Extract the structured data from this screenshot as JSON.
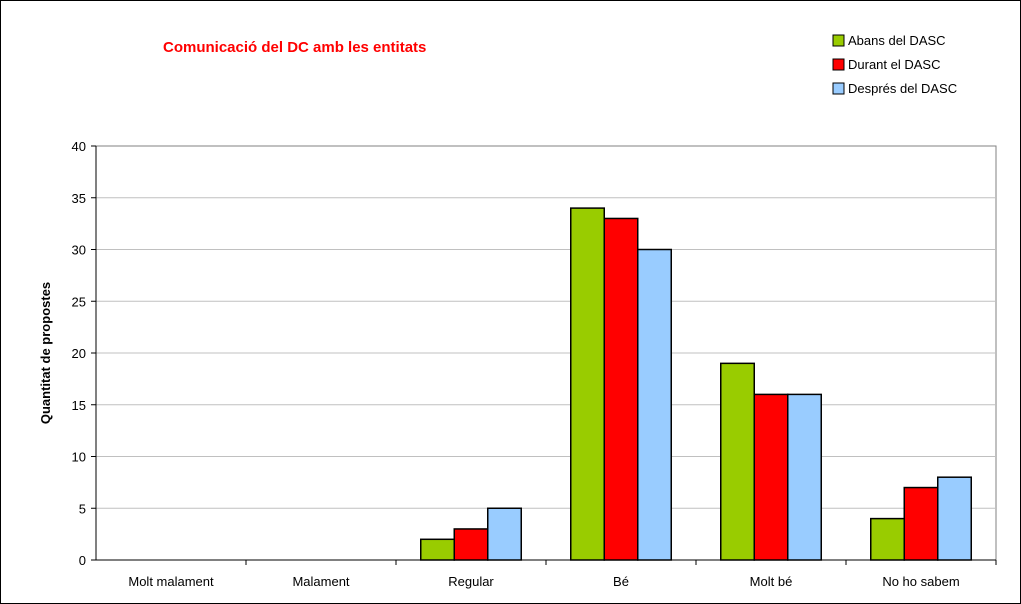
{
  "chart_data": {
    "type": "bar",
    "title": "Comunicació del DC amb les entitats",
    "xlabel": "",
    "ylabel": "Quantitat de propostes",
    "categories": [
      "Molt malament",
      "Malament",
      "Regular",
      "Bé",
      "Molt bé",
      "No ho sabem"
    ],
    "series": [
      {
        "name": "Abans del DASC",
        "color": "#99cc00",
        "values": [
          0,
          0,
          2,
          34,
          19,
          4
        ]
      },
      {
        "name": "Durant el DASC",
        "color": "#ff0000",
        "values": [
          0,
          0,
          3,
          33,
          16,
          7
        ]
      },
      {
        "name": "Després del DASC",
        "color": "#99ccff",
        "values": [
          0,
          0,
          5,
          30,
          16,
          8
        ]
      }
    ],
    "ylim": [
      0,
      40
    ],
    "yticks": [
      0,
      5,
      10,
      15,
      20,
      25,
      30,
      35,
      40
    ],
    "grid": true,
    "legend_position": "top-right"
  }
}
